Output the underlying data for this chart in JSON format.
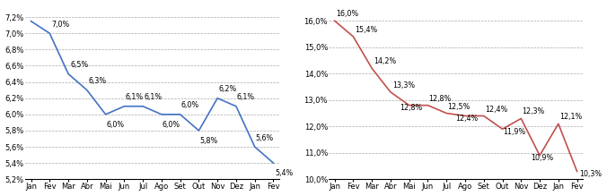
{
  "categories": [
    "Jan",
    "Fev",
    "Mar",
    "Abr",
    "Mai",
    "Jun",
    "Jul",
    "Ago",
    "Set",
    "Out",
    "Nov",
    "Dez",
    "Jan",
    "Fev"
  ],
  "left_values": [
    7.15,
    7.0,
    6.5,
    6.3,
    6.0,
    6.1,
    6.1,
    6.0,
    6.0,
    5.8,
    6.2,
    6.1,
    5.6,
    5.4
  ],
  "left_labels": [
    "",
    "7,0%",
    "6,5%",
    "6,3%",
    "6,0%",
    "6,1%",
    "6,1%",
    "6,0%",
    "6,0%",
    "5,8%",
    "6,2%",
    "6,1%",
    "5,6%",
    "5,4%"
  ],
  "left_ylim": [
    5.2,
    7.35
  ],
  "left_yticks": [
    5.2,
    5.4,
    5.6,
    5.8,
    6.0,
    6.2,
    6.4,
    6.6,
    6.8,
    7.0,
    7.2
  ],
  "left_color": "#4472C4",
  "right_values": [
    16.0,
    15.4,
    14.2,
    13.3,
    12.8,
    12.8,
    12.5,
    12.4,
    12.4,
    11.9,
    12.3,
    10.9,
    12.1,
    10.3
  ],
  "right_labels": [
    "16,0%",
    "15,4%",
    "14,2%",
    "13,3%",
    "12,8%",
    "12,8%",
    "12,5%",
    "12,4%",
    "12,4%",
    "11,9%",
    "12,3%",
    "10,9%",
    "12,1%",
    "10,3%"
  ],
  "right_ylim": [
    10.0,
    16.6
  ],
  "right_yticks": [
    10.0,
    11.0,
    12.0,
    13.0,
    14.0,
    15.0,
    16.0
  ],
  "right_color": "#C0504D",
  "background_color": "#FFFFFF",
  "grid_color": "#AAAAAA",
  "font_size": 6.0,
  "label_font_size": 5.8
}
